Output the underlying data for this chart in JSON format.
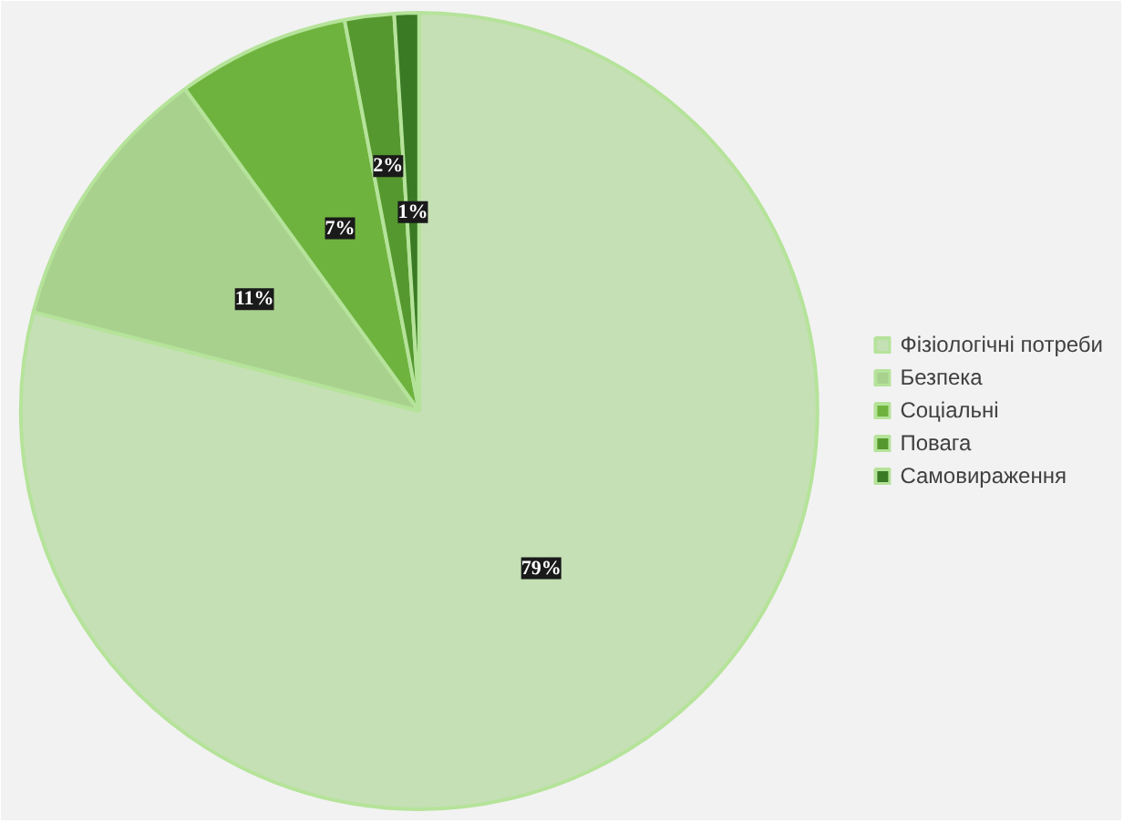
{
  "chart_data": {
    "type": "pie",
    "categories": [
      "Фізіологічні потреби",
      "Безпека",
      "Соціальні",
      "Повага",
      "Самовираження"
    ],
    "values": [
      79,
      11,
      7,
      2,
      1
    ],
    "colors": [
      "#c5e0b4",
      "#a9d18e",
      "#6fb33f",
      "#55982f",
      "#3a7a25"
    ],
    "value_labels": [
      "79%",
      "11%",
      "7%",
      "2%",
      "1%"
    ],
    "legend": "right"
  }
}
